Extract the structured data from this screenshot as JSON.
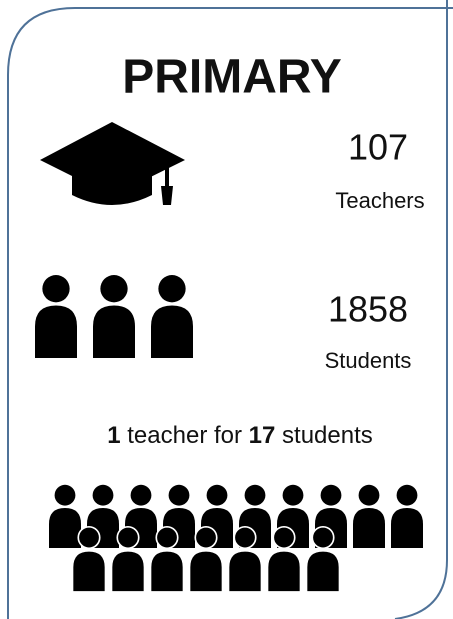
{
  "title": "PRIMARY",
  "teachers": {
    "count": "107",
    "label": "Teachers"
  },
  "students": {
    "count": "1858",
    "label": "Students"
  },
  "ratio": {
    "teachers": "1",
    "middle": " teacher for ",
    "students": "17",
    "end": " students"
  }
}
